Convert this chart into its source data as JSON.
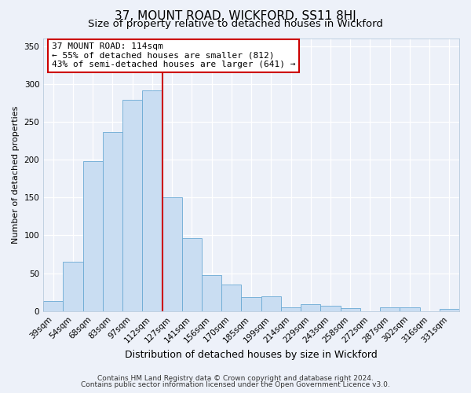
{
  "title": "37, MOUNT ROAD, WICKFORD, SS11 8HJ",
  "subtitle": "Size of property relative to detached houses in Wickford",
  "xlabel": "Distribution of detached houses by size in Wickford",
  "ylabel": "Number of detached properties",
  "bar_labels": [
    "39sqm",
    "54sqm",
    "68sqm",
    "83sqm",
    "97sqm",
    "112sqm",
    "127sqm",
    "141sqm",
    "156sqm",
    "170sqm",
    "185sqm",
    "199sqm",
    "214sqm",
    "229sqm",
    "243sqm",
    "258sqm",
    "272sqm",
    "287sqm",
    "302sqm",
    "316sqm",
    "331sqm"
  ],
  "bar_values": [
    13,
    65,
    198,
    236,
    279,
    291,
    150,
    96,
    48,
    35,
    18,
    20,
    5,
    9,
    7,
    4,
    0,
    5,
    5,
    0,
    3
  ],
  "bar_color": "#c9ddf2",
  "bar_edge_color": "#6aaad4",
  "vline_x": 5.5,
  "vline_color": "#cc0000",
  "ylim": [
    0,
    360
  ],
  "yticks": [
    0,
    50,
    100,
    150,
    200,
    250,
    300,
    350
  ],
  "annotation_title": "37 MOUNT ROAD: 114sqm",
  "annotation_line1": "← 55% of detached houses are smaller (812)",
  "annotation_line2": "43% of semi-detached houses are larger (641) →",
  "annotation_box_color": "#ffffff",
  "annotation_box_edge": "#cc0000",
  "footer1": "Contains HM Land Registry data © Crown copyright and database right 2024.",
  "footer2": "Contains public sector information licensed under the Open Government Licence v3.0.",
  "bg_color": "#edf1f9",
  "grid_color": "#ffffff",
  "title_fontsize": 11,
  "subtitle_fontsize": 9.5,
  "xlabel_fontsize": 9,
  "ylabel_fontsize": 8,
  "tick_fontsize": 7.5,
  "annotation_fontsize": 8,
  "footer_fontsize": 6.5
}
